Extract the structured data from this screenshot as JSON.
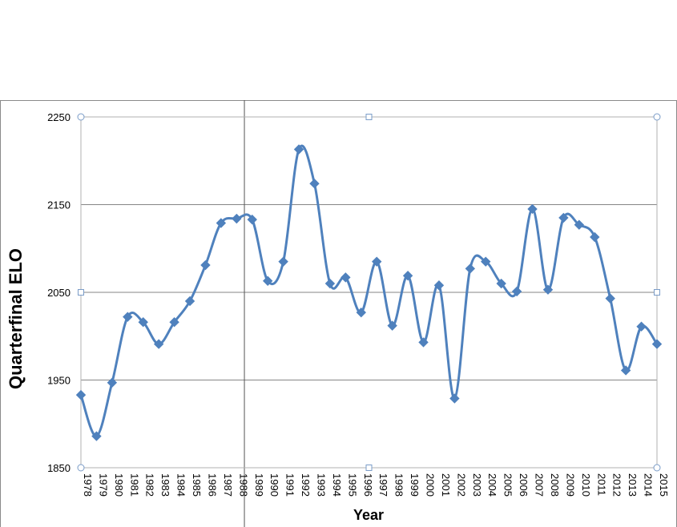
{
  "chart_data": {
    "type": "line",
    "title": "",
    "xlabel": "Year",
    "ylabel": "Quarterfinal  ELO",
    "ylim": [
      1850,
      2250
    ],
    "yticks": [
      1850,
      1950,
      2050,
      2150,
      2250
    ],
    "grid": true,
    "legend": "none",
    "series_color": "#4f81bd",
    "gridline_color": "#868686",
    "cursor_line_after": "1988",
    "x": [
      "1978",
      "1979",
      "1980",
      "1981",
      "1982",
      "1983",
      "1984",
      "1985",
      "1986",
      "1987",
      "1988",
      "1989",
      "1990",
      "1991",
      "1992",
      "1993",
      "1994",
      "1995",
      "1996",
      "1997",
      "1998",
      "1999",
      "2000",
      "2001",
      "2002",
      "2003",
      "2004",
      "2005",
      "2006",
      "2007",
      "2008",
      "2009",
      "2010",
      "2011",
      "2012",
      "2013",
      "2014",
      "2015"
    ],
    "series": [
      {
        "values": [
          1933,
          1886,
          1947,
          2022,
          2016,
          1991,
          2016,
          2040,
          2081,
          2129,
          2134,
          2133,
          2063,
          2085,
          2213,
          2174,
          2060,
          2067,
          2027,
          2085,
          2012,
          2069,
          1993,
          2058,
          1929,
          2077,
          2085,
          2060,
          2051,
          2145,
          2053,
          2135,
          2127,
          2113,
          2043,
          1961,
          2011,
          1991
        ]
      }
    ]
  }
}
